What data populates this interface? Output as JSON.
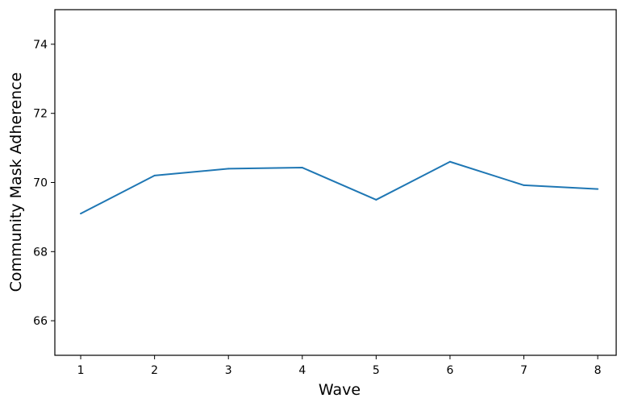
{
  "chart_data": {
    "type": "line",
    "xlabel": "Wave",
    "ylabel": "Community Mask Adherence",
    "x": [
      1,
      2,
      3,
      4,
      5,
      6,
      7,
      8
    ],
    "x_tick_labels": [
      "1",
      "2",
      "3",
      "4",
      "5",
      "6",
      "7",
      "8"
    ],
    "y_ticks": [
      66,
      68,
      70,
      72,
      74
    ],
    "y_tick_labels": [
      "66",
      "68",
      "70",
      "72",
      "74"
    ],
    "xlim": [
      0.65,
      8.25
    ],
    "ylim": [
      65,
      75
    ],
    "grid": false,
    "series": [
      {
        "values": [
          69.1,
          70.2,
          70.4,
          70.43,
          69.5,
          70.6,
          69.92,
          69.81
        ],
        "color": "#1f77b4"
      }
    ]
  }
}
